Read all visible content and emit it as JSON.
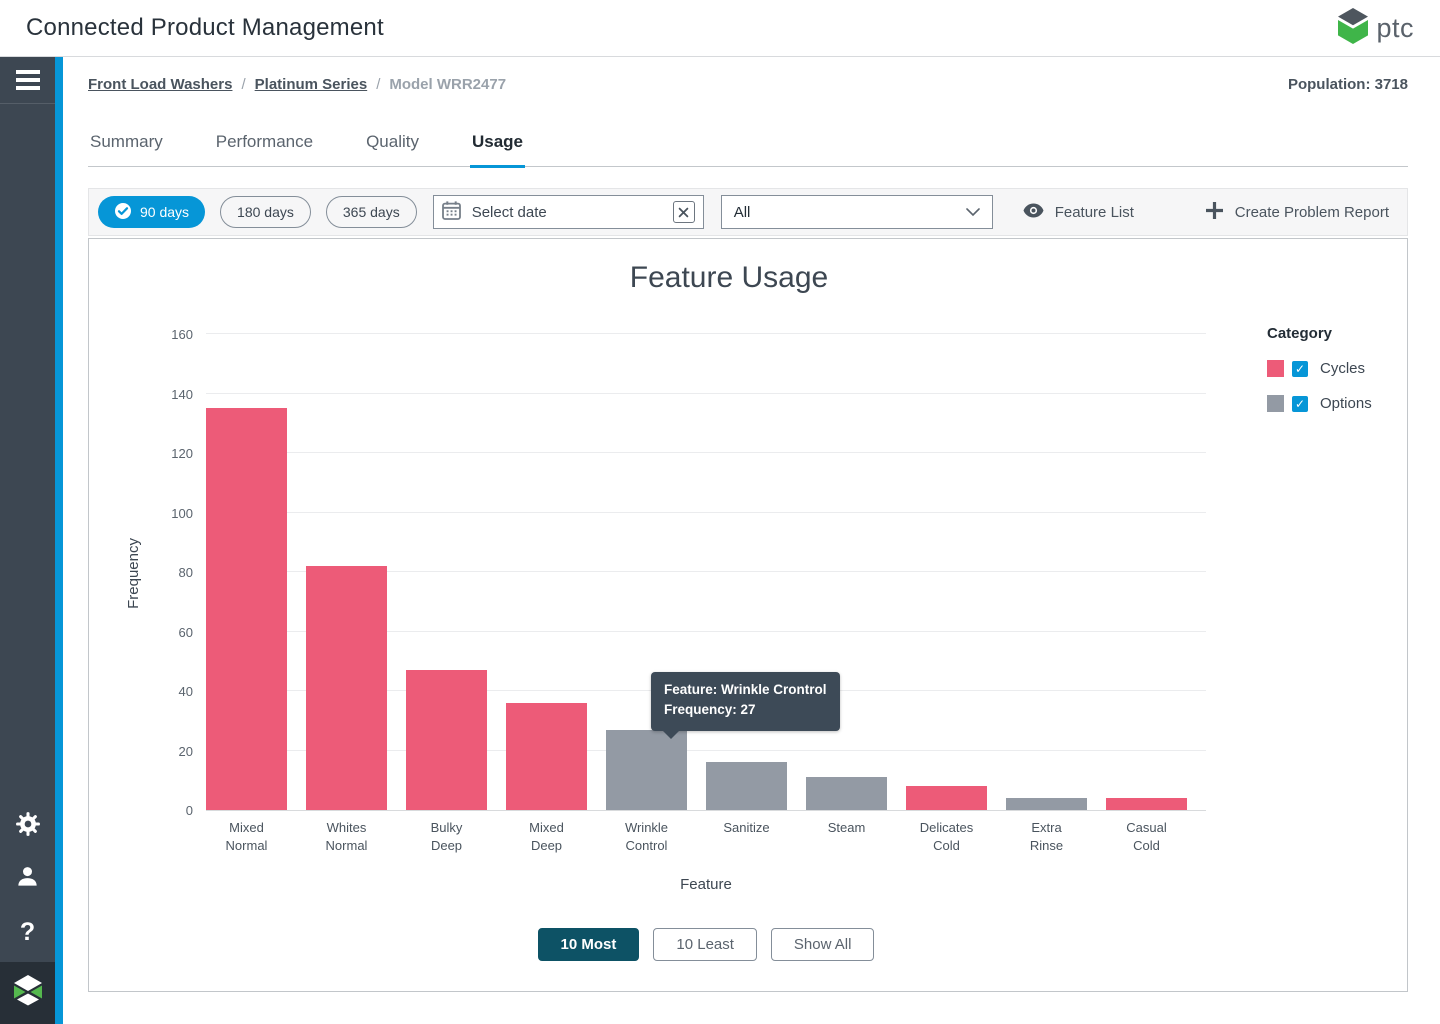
{
  "header": {
    "title": "Connected Product Management",
    "brand": "ptc"
  },
  "sidebar": {
    "icons": [
      "menu-icon",
      "gear-icon",
      "user-icon",
      "help-icon",
      "thingworx-logo"
    ],
    "help_glyph": "?"
  },
  "breadcrumb": {
    "links": [
      "Front Load Washers",
      "Platinum Series"
    ],
    "current": "Model WRR2477",
    "separator": "/"
  },
  "population_label": "Population: 3718",
  "tabs": [
    {
      "label": "Summary",
      "active": false
    },
    {
      "label": "Performance",
      "active": false
    },
    {
      "label": "Quality",
      "active": false
    },
    {
      "label": "Usage",
      "active": true
    }
  ],
  "toolbar": {
    "range_filters": [
      {
        "label": "90 days",
        "active": true
      },
      {
        "label": "180 days",
        "active": false
      },
      {
        "label": "365 days",
        "active": false
      }
    ],
    "date_placeholder": "Select date",
    "category_filter_value": "All",
    "feature_list_label": "Feature List",
    "create_problem_report_label": "Create Problem Report"
  },
  "chart_data": {
    "type": "bar",
    "title": "Feature Usage",
    "xlabel": "Feature",
    "ylabel": "Frequency",
    "ylim": [
      0,
      160
    ],
    "ytick_interval": 20,
    "grid": true,
    "categories": [
      "Mixed Normal",
      "Whites Normal",
      "Bulky Deep",
      "Mixed Deep",
      "Wrinkle Control",
      "Sanitize",
      "Steam",
      "Delicates Cold",
      "Extra Rinse",
      "Casual Cold"
    ],
    "values": [
      135,
      82,
      47,
      36,
      27,
      16,
      11,
      8,
      4,
      4
    ],
    "bar_categories": [
      "Cycles",
      "Cycles",
      "Cycles",
      "Cycles",
      "Options",
      "Options",
      "Options",
      "Cycles",
      "Options",
      "Cycles"
    ],
    "legend": {
      "title": "Category",
      "position": "right",
      "entries": [
        {
          "label": "Cycles",
          "color": "#ed5b78",
          "checked": true
        },
        {
          "label": "Options",
          "color": "#939aa4",
          "checked": true
        }
      ]
    }
  },
  "tooltip": {
    "line1": "Feature: Wrinkle Crontrol",
    "line2": "Frequency: 27"
  },
  "chart_footer_buttons": [
    {
      "label": "10 Most",
      "active": true
    },
    {
      "label": "10 Least",
      "active": false
    },
    {
      "label": "Show All",
      "active": false
    }
  ],
  "colors": {
    "accent_blue": "#0696d7",
    "bar_pink": "#ed5b78",
    "bar_gray": "#939aa4",
    "tooltip_bg": "#3d4a57",
    "active_button_teal": "#0d5265"
  }
}
